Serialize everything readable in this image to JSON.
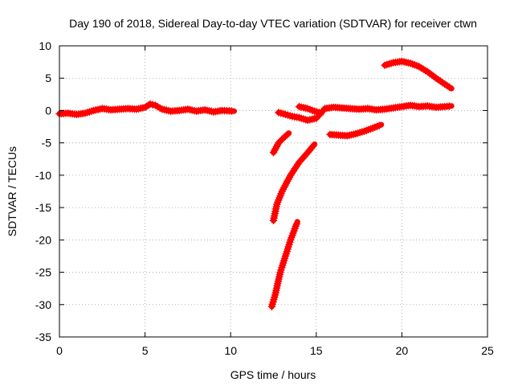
{
  "chart_data": {
    "type": "scatter",
    "title": "Day 190 of 2018, Sidereal Day-to-day VTEC variation (SDTVAR) for receiver ctwn",
    "xlabel": "GPS time / hours",
    "ylabel": "SDTVAR / TECUs",
    "xlim": [
      0,
      25
    ],
    "ylim": [
      -35,
      10
    ],
    "xticks": [
      0,
      5,
      10,
      15,
      20,
      25
    ],
    "yticks": [
      -35,
      -30,
      -25,
      -20,
      -15,
      -10,
      -5,
      0,
      5,
      10
    ],
    "grid": true,
    "marker": "plus",
    "color": "#ff0000",
    "series": [
      {
        "points": [
          [
            0.0,
            -0.5
          ],
          [
            0.5,
            -0.4
          ],
          [
            1.0,
            -0.6
          ],
          [
            1.5,
            -0.4
          ],
          [
            2.0,
            0.0
          ],
          [
            2.5,
            0.3
          ],
          [
            3.0,
            0.1
          ],
          [
            3.5,
            0.2
          ],
          [
            4.0,
            0.3
          ],
          [
            4.5,
            0.2
          ],
          [
            5.0,
            0.5
          ],
          [
            5.3,
            1.0
          ],
          [
            5.6,
            0.8
          ],
          [
            6.0,
            0.2
          ],
          [
            6.5,
            -0.1
          ],
          [
            7.0,
            0.0
          ],
          [
            7.5,
            0.2
          ],
          [
            8.0,
            -0.1
          ],
          [
            8.5,
            0.1
          ],
          [
            9.0,
            -0.2
          ],
          [
            9.5,
            0.0
          ],
          [
            10.2,
            -0.1
          ]
        ]
      },
      {
        "points": [
          [
            12.5,
            -6.5
          ],
          [
            12.8,
            -5.0
          ],
          [
            13.1,
            -4.2
          ],
          [
            13.4,
            -3.5
          ]
        ]
      },
      {
        "points": [
          [
            12.5,
            -17.0
          ],
          [
            12.7,
            -14.5
          ],
          [
            13.0,
            -12.5
          ],
          [
            13.5,
            -10.0
          ],
          [
            14.0,
            -8.0
          ],
          [
            14.5,
            -6.5
          ],
          [
            14.9,
            -5.2
          ]
        ]
      },
      {
        "points": [
          [
            12.4,
            -30.3
          ],
          [
            12.6,
            -28.5
          ],
          [
            12.9,
            -25.0
          ],
          [
            13.2,
            -22.5
          ],
          [
            13.5,
            -20.0
          ],
          [
            13.9,
            -17.2
          ]
        ]
      },
      {
        "points": [
          [
            12.8,
            -0.3
          ],
          [
            13.2,
            -0.6
          ],
          [
            13.6,
            -0.9
          ],
          [
            14.0,
            -1.1
          ],
          [
            14.5,
            -1.5
          ],
          [
            15.0,
            -1.2
          ],
          [
            15.3,
            -0.3
          ],
          [
            15.5,
            0.3
          ],
          [
            16.0,
            0.5
          ],
          [
            16.5,
            0.4
          ],
          [
            17.0,
            0.3
          ],
          [
            17.5,
            0.2
          ],
          [
            18.0,
            0.3
          ],
          [
            18.5,
            0.1
          ],
          [
            19.0,
            0.2
          ],
          [
            19.5,
            0.4
          ],
          [
            20.0,
            0.6
          ],
          [
            20.5,
            0.8
          ],
          [
            21.0,
            0.6
          ],
          [
            21.5,
            0.7
          ],
          [
            22.0,
            0.5
          ],
          [
            22.5,
            0.6
          ],
          [
            22.9,
            0.7
          ]
        ]
      },
      {
        "points": [
          [
            14.0,
            0.6
          ],
          [
            14.5,
            0.3
          ],
          [
            14.9,
            -0.1
          ],
          [
            15.3,
            -0.4
          ]
        ]
      },
      {
        "points": [
          [
            15.8,
            -3.7
          ],
          [
            16.3,
            -3.8
          ],
          [
            16.8,
            -3.9
          ],
          [
            17.3,
            -3.6
          ],
          [
            17.8,
            -3.2
          ],
          [
            18.3,
            -2.7
          ],
          [
            18.8,
            -2.2
          ]
        ]
      },
      {
        "points": [
          [
            19.0,
            7.0
          ],
          [
            19.5,
            7.4
          ],
          [
            20.0,
            7.6
          ],
          [
            20.5,
            7.3
          ],
          [
            21.0,
            6.8
          ],
          [
            21.5,
            6.0
          ],
          [
            22.0,
            5.0
          ],
          [
            22.5,
            4.1
          ],
          [
            22.9,
            3.4
          ]
        ]
      }
    ]
  }
}
